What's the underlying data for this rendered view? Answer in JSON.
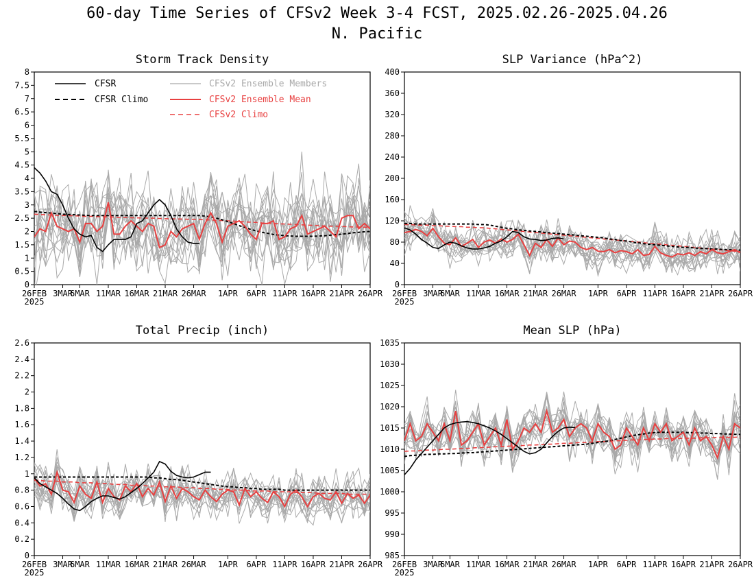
{
  "figure": {
    "title_line1": "60-day Time Series of CFSv2 Week 3-4 FCST, 2025.02.26-2025.04.26",
    "title_line2": "N. Pacific",
    "x_ticks": [
      "26FEB",
      "3MAR",
      "6MAR",
      "11MAR",
      "16MAR",
      "21MAR",
      "26MAR",
      "1APR",
      "6APR",
      "11APR",
      "16APR",
      "21APR",
      "26APR"
    ],
    "x_tick_days": [
      0,
      5,
      8,
      13,
      18,
      23,
      28,
      34,
      39,
      44,
      49,
      54,
      59
    ],
    "x_year_label": "2025",
    "legend": {
      "cfsr": "CFSR",
      "cfsr_climo": "CFSR Climo",
      "members": "CFSv2 Ensemble Members",
      "ens_mean": "CFSv2 Ensemble Mean",
      "cfsv2_climo": "CFSv2 Climo"
    },
    "colors": {
      "cfsr": "#000000",
      "members": "#a9a9a9",
      "ens_mean": "#e84040",
      "climo_red": "#e84040"
    }
  },
  "chart_data": [
    {
      "type": "line",
      "id": "storm-track",
      "title": "Storm Track Density",
      "x_days": 60,
      "ylim": [
        0,
        8
      ],
      "yticks": [
        0,
        0.5,
        1,
        1.5,
        2,
        2.5,
        3,
        3.5,
        4,
        4.5,
        5,
        5.5,
        6,
        6.5,
        7,
        7.5,
        8
      ],
      "ytick_labels": [
        "0",
        "0.5",
        "1",
        "1.5",
        "2",
        "2.5",
        "3",
        "3.5",
        "4",
        "4.5",
        "5",
        "5.5",
        "6",
        "6.5",
        "7",
        "7.5",
        "8"
      ],
      "show_legend": true,
      "cfsr": [
        4.4,
        4.2,
        3.9,
        3.5,
        3.4,
        3.0,
        2.5,
        2.1,
        1.9,
        1.8,
        1.85,
        1.4,
        1.25,
        1.5,
        1.7,
        1.7,
        1.7,
        1.8,
        2.3,
        2.4,
        2.7,
        3.0,
        3.2,
        3.0,
        2.6,
        2.1,
        1.8,
        1.6,
        1.55,
        1.55
      ],
      "cfsr_climo": [
        2.75,
        2.73,
        2.71,
        2.69,
        2.67,
        2.65,
        2.64,
        2.63,
        2.62,
        2.61,
        2.6,
        2.6,
        2.6,
        2.6,
        2.6,
        2.6,
        2.6,
        2.6,
        2.6,
        2.6,
        2.6,
        2.6,
        2.6,
        2.6,
        2.6,
        2.6,
        2.6,
        2.6,
        2.6,
        2.6,
        2.58,
        2.55,
        2.5,
        2.44,
        2.37,
        2.3,
        2.22,
        2.15,
        2.08,
        2.02,
        1.97,
        1.93,
        1.89,
        1.86,
        1.84,
        1.83,
        1.82,
        1.82,
        1.82,
        1.82,
        1.83,
        1.84,
        1.86,
        1.88,
        1.9,
        1.92,
        1.95,
        1.97,
        1.99,
        2.0
      ],
      "ens_mean": [
        1.8,
        2.1,
        2.0,
        2.7,
        2.2,
        2.1,
        2.0,
        2.1,
        1.6,
        2.3,
        2.3,
        2.0,
        2.2,
        3.1,
        1.9,
        1.9,
        2.2,
        2.4,
        2.2,
        2.0,
        2.3,
        2.2,
        1.4,
        1.5,
        2.0,
        1.8,
        2.1,
        2.2,
        2.3,
        1.7,
        2.3,
        2.7,
        2.3,
        1.6,
        2.2,
        2.3,
        2.4,
        2.2,
        1.9,
        1.7,
        2.3,
        2.3,
        2.4,
        1.7,
        1.8,
        2.1,
        2.2,
        2.6,
        1.9,
        2.0,
        2.1,
        2.2,
        2.0,
        1.8,
        2.5,
        2.6,
        2.6,
        2.1,
        2.3,
        2.1
      ],
      "cfsv2_climo": [
        2.65,
        2.64,
        2.63,
        2.62,
        2.61,
        2.6,
        2.6,
        2.59,
        2.58,
        2.57,
        2.57,
        2.56,
        2.55,
        2.55,
        2.54,
        2.53,
        2.53,
        2.52,
        2.51,
        2.51,
        2.5,
        2.5,
        2.49,
        2.48,
        2.48,
        2.47,
        2.47,
        2.46,
        2.46,
        2.45,
        2.44,
        2.43,
        2.42,
        2.41,
        2.4,
        2.39,
        2.38,
        2.36,
        2.35,
        2.34,
        2.32,
        2.31,
        2.3,
        2.29,
        2.28,
        2.27,
        2.26,
        2.25,
        2.24,
        2.23,
        2.22,
        2.21,
        2.2,
        2.2,
        2.19,
        2.18,
        2.17,
        2.17,
        2.16,
        2.15
      ],
      "members": {
        "count": 16,
        "spread": 1.05,
        "seed": 11
      }
    },
    {
      "type": "line",
      "id": "slp-variance",
      "title": "SLP Variance (hPa^2)",
      "x_days": 60,
      "ylim": [
        0,
        400
      ],
      "yticks": [
        0,
        40,
        80,
        120,
        160,
        200,
        240,
        280,
        320,
        360,
        400
      ],
      "ytick_labels": [
        "0",
        "40",
        "80",
        "120",
        "160",
        "200",
        "240",
        "280",
        "320",
        "360",
        "400"
      ],
      "show_legend": false,
      "cfsr": [
        107,
        103,
        95,
        85,
        78,
        70,
        68,
        75,
        80,
        78,
        73,
        69,
        67,
        67,
        69,
        72,
        78,
        82,
        90,
        100,
        98,
        90,
        86,
        85,
        83,
        84,
        87,
        88,
        86
      ],
      "cfsr_climo": [
        115,
        115,
        114,
        114,
        114,
        114,
        114,
        114,
        114,
        114,
        114,
        114,
        114,
        113,
        113,
        112,
        110,
        108,
        106,
        105,
        103,
        102,
        101,
        100,
        99,
        98,
        97,
        96,
        95,
        94,
        93,
        92,
        91,
        90,
        89,
        88,
        86,
        85,
        83,
        82,
        80,
        79,
        77,
        76,
        75,
        74,
        73,
        72,
        71,
        70,
        70,
        69,
        68,
        68,
        67,
        67,
        66,
        66,
        65,
        65
      ],
      "ens_mean": [
        98,
        100,
        104,
        100,
        92,
        106,
        90,
        78,
        75,
        88,
        72,
        78,
        85,
        70,
        80,
        84,
        78,
        86,
        80,
        85,
        95,
        75,
        55,
        78,
        70,
        85,
        72,
        88,
        75,
        82,
        80,
        70,
        66,
        70,
        63,
        62,
        66,
        60,
        64,
        62,
        58,
        66,
        55,
        57,
        72,
        60,
        55,
        52,
        58,
        56,
        60,
        55,
        62,
        58,
        66,
        60,
        58,
        62,
        66,
        60
      ],
      "cfsv2_climo": [
        113,
        113,
        112,
        112,
        112,
        111,
        111,
        110,
        110,
        109,
        109,
        108,
        108,
        107,
        107,
        106,
        105,
        104,
        103,
        102,
        101,
        100,
        99,
        98,
        97,
        96,
        95,
        94,
        93,
        92,
        91,
        90,
        89,
        88,
        87,
        86,
        85,
        84,
        83,
        82,
        81,
        80,
        79,
        78,
        77,
        76,
        75,
        74,
        73,
        72,
        71,
        70,
        69,
        68,
        67,
        66,
        65,
        64,
        63,
        62
      ],
      "members": {
        "count": 16,
        "spread": 22,
        "seed": 23
      }
    },
    {
      "type": "line",
      "id": "total-precip",
      "title": "Total Precip (inch)",
      "x_days": 60,
      "ylim": [
        0,
        2.6
      ],
      "yticks": [
        0,
        0.2,
        0.4,
        0.6,
        0.8,
        1,
        1.2,
        1.4,
        1.6,
        1.8,
        2,
        2.2,
        2.4,
        2.6
      ],
      "ytick_labels": [
        "0",
        "0.2",
        "0.4",
        "0.6",
        "0.8",
        "1",
        "1.2",
        "1.4",
        "1.6",
        "1.8",
        "2",
        "2.2",
        "2.4",
        "2.6"
      ],
      "show_legend": false,
      "cfsr": [
        0.95,
        0.88,
        0.84,
        0.8,
        0.76,
        0.7,
        0.63,
        0.57,
        0.55,
        0.6,
        0.66,
        0.7,
        0.73,
        0.73,
        0.71,
        0.69,
        0.72,
        0.77,
        0.82,
        0.88,
        0.95,
        1.02,
        1.15,
        1.12,
        1.03,
        0.98,
        0.96,
        0.95,
        0.96,
        0.99,
        1.02,
        1.02
      ],
      "cfsr_climo": [
        0.96,
        0.96,
        0.96,
        0.96,
        0.96,
        0.96,
        0.96,
        0.96,
        0.96,
        0.96,
        0.96,
        0.96,
        0.96,
        0.96,
        0.96,
        0.96,
        0.96,
        0.96,
        0.96,
        0.96,
        0.96,
        0.95,
        0.95,
        0.94,
        0.93,
        0.93,
        0.92,
        0.91,
        0.9,
        0.89,
        0.88,
        0.87,
        0.86,
        0.85,
        0.84,
        0.84,
        0.83,
        0.83,
        0.82,
        0.82,
        0.81,
        0.81,
        0.81,
        0.81,
        0.8,
        0.8,
        0.8,
        0.8,
        0.8,
        0.8,
        0.8,
        0.8,
        0.8,
        0.8,
        0.8,
        0.8,
        0.8,
        0.8,
        0.8,
        0.8
      ],
      "ens_mean": [
        0.95,
        0.85,
        0.88,
        0.75,
        1.02,
        0.8,
        0.78,
        0.65,
        0.85,
        0.75,
        0.7,
        0.9,
        0.65,
        0.82,
        0.72,
        0.68,
        0.85,
        0.78,
        0.88,
        0.72,
        0.82,
        0.74,
        0.9,
        0.66,
        0.85,
        0.7,
        0.82,
        0.78,
        0.72,
        0.68,
        0.8,
        0.72,
        0.66,
        0.75,
        0.8,
        0.78,
        0.62,
        0.82,
        0.72,
        0.78,
        0.7,
        0.65,
        0.78,
        0.72,
        0.6,
        0.75,
        0.8,
        0.72,
        0.6,
        0.72,
        0.76,
        0.7,
        0.68,
        0.78,
        0.64,
        0.76,
        0.7,
        0.74,
        0.64,
        0.74
      ],
      "cfsv2_climo": [
        0.92,
        0.92,
        0.91,
        0.91,
        0.91,
        0.9,
        0.9,
        0.9,
        0.89,
        0.89,
        0.89,
        0.88,
        0.88,
        0.88,
        0.87,
        0.87,
        0.87,
        0.86,
        0.86,
        0.86,
        0.85,
        0.85,
        0.85,
        0.84,
        0.84,
        0.84,
        0.83,
        0.83,
        0.83,
        0.82,
        0.82,
        0.82,
        0.81,
        0.81,
        0.81,
        0.8,
        0.8,
        0.8,
        0.79,
        0.79,
        0.79,
        0.79,
        0.78,
        0.78,
        0.78,
        0.78,
        0.77,
        0.77,
        0.77,
        0.77,
        0.76,
        0.76,
        0.76,
        0.76,
        0.76,
        0.75,
        0.75,
        0.75,
        0.75,
        0.75
      ],
      "members": {
        "count": 16,
        "spread": 0.16,
        "seed": 37
      }
    },
    {
      "type": "line",
      "id": "mean-slp",
      "title": "Mean SLP (hPa)",
      "x_days": 60,
      "ylim": [
        985,
        1035
      ],
      "yticks": [
        985,
        990,
        995,
        1000,
        1005,
        1010,
        1015,
        1020,
        1025,
        1030,
        1035
      ],
      "ytick_labels": [
        "985",
        "990",
        "995",
        "1000",
        "1005",
        "1010",
        "1015",
        "1020",
        "1025",
        "1030",
        "1035"
      ],
      "show_legend": false,
      "cfsr": [
        1004,
        1005.5,
        1007.5,
        1009,
        1010.5,
        1012,
        1013.5,
        1015,
        1015.8,
        1016.2,
        1016.4,
        1016.5,
        1016.3,
        1016,
        1015.5,
        1015,
        1014.3,
        1013.5,
        1012.5,
        1011.5,
        1010.5,
        1009.5,
        1008.9,
        1009.2,
        1010,
        1011.5,
        1013,
        1014.2,
        1015,
        1015.2,
        1015.1
      ],
      "cfsr_climo": [
        1008.3,
        1008.5,
        1008.6,
        1008.7,
        1008.8,
        1008.8,
        1008.9,
        1008.9,
        1009,
        1009,
        1009.1,
        1009.2,
        1009.2,
        1009.3,
        1009.4,
        1009.5,
        1009.6,
        1009.7,
        1009.8,
        1009.9,
        1010,
        1010.1,
        1010.2,
        1010.3,
        1010.4,
        1010.5,
        1010.6,
        1010.7,
        1010.8,
        1010.9,
        1011,
        1011.1,
        1011.2,
        1011.4,
        1011.6,
        1011.8,
        1012,
        1012.3,
        1012.6,
        1012.9,
        1013.2,
        1013.4,
        1013.6,
        1013.8,
        1013.9,
        1014,
        1014,
        1014,
        1014,
        1014,
        1013.9,
        1013.9,
        1013.8,
        1013.8,
        1013.7,
        1013.7,
        1013.6,
        1013.6,
        1013.5,
        1013.5
      ],
      "ens_mean": [
        1012,
        1016,
        1012,
        1013,
        1016,
        1014,
        1012,
        1016,
        1012,
        1019,
        1011,
        1012,
        1014,
        1016,
        1011,
        1013,
        1015,
        1011,
        1017,
        1010,
        1012,
        1015,
        1014,
        1016,
        1014,
        1019,
        1014,
        1015,
        1017,
        1013,
        1015,
        1016,
        1015,
        1012,
        1016,
        1014,
        1013,
        1010,
        1011,
        1015,
        1013,
        1011,
        1015,
        1012,
        1016,
        1014,
        1016,
        1012,
        1013,
        1014,
        1011,
        1015,
        1012,
        1013,
        1011,
        1008,
        1013,
        1010,
        1016,
        1015
      ],
      "cfsv2_climo": [
        1009.5,
        1009.6,
        1009.6,
        1009.7,
        1009.8,
        1009.8,
        1009.9,
        1010,
        1010,
        1010.1,
        1010.2,
        1010.2,
        1010.3,
        1010.4,
        1010.4,
        1010.5,
        1010.6,
        1010.6,
        1010.7,
        1010.8,
        1010.8,
        1010.9,
        1011,
        1011,
        1011.1,
        1011.2,
        1011.2,
        1011.3,
        1011.4,
        1011.4,
        1011.5,
        1011.6,
        1011.6,
        1011.7,
        1011.8,
        1011.8,
        1011.9,
        1012,
        1012,
        1012.1,
        1012.2,
        1012.2,
        1012.3,
        1012.3,
        1012.4,
        1012.4,
        1012.5,
        1012.5,
        1012.5,
        1012.6,
        1012.6,
        1012.6,
        1012.7,
        1012.7,
        1012.7,
        1012.8,
        1012.8,
        1012.8,
        1012.8,
        1012.9
      ],
      "members": {
        "count": 16,
        "spread": 3.2,
        "seed": 53
      }
    }
  ]
}
